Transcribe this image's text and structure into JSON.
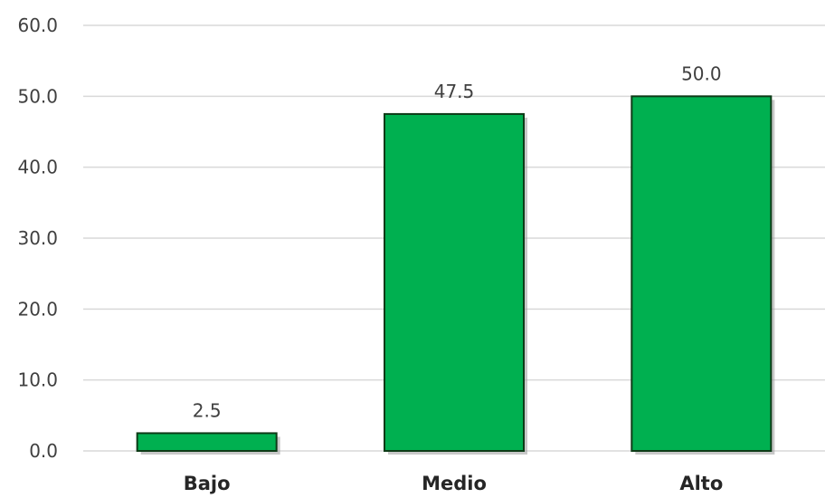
{
  "chart_data": {
    "type": "bar",
    "title": "",
    "xlabel": "",
    "ylabel": "",
    "categories": [
      "Bajo",
      "Medio",
      "Alto"
    ],
    "values": [
      2.5,
      47.5,
      50.0
    ],
    "data_labels": [
      "2.5",
      "47.5",
      "50.0"
    ],
    "ylim": [
      0,
      60
    ],
    "yticks": [
      0,
      10,
      20,
      30,
      40,
      50,
      60
    ],
    "ytick_labels": [
      "0.0",
      "10.0",
      "20.0",
      "30.0",
      "40.0",
      "50.0",
      "60.0"
    ],
    "grid": true,
    "legend": false,
    "colors": {
      "bar_fill": "#00b050",
      "bar_border": "#0d3b17",
      "gridline": "#d9d9d9"
    }
  }
}
